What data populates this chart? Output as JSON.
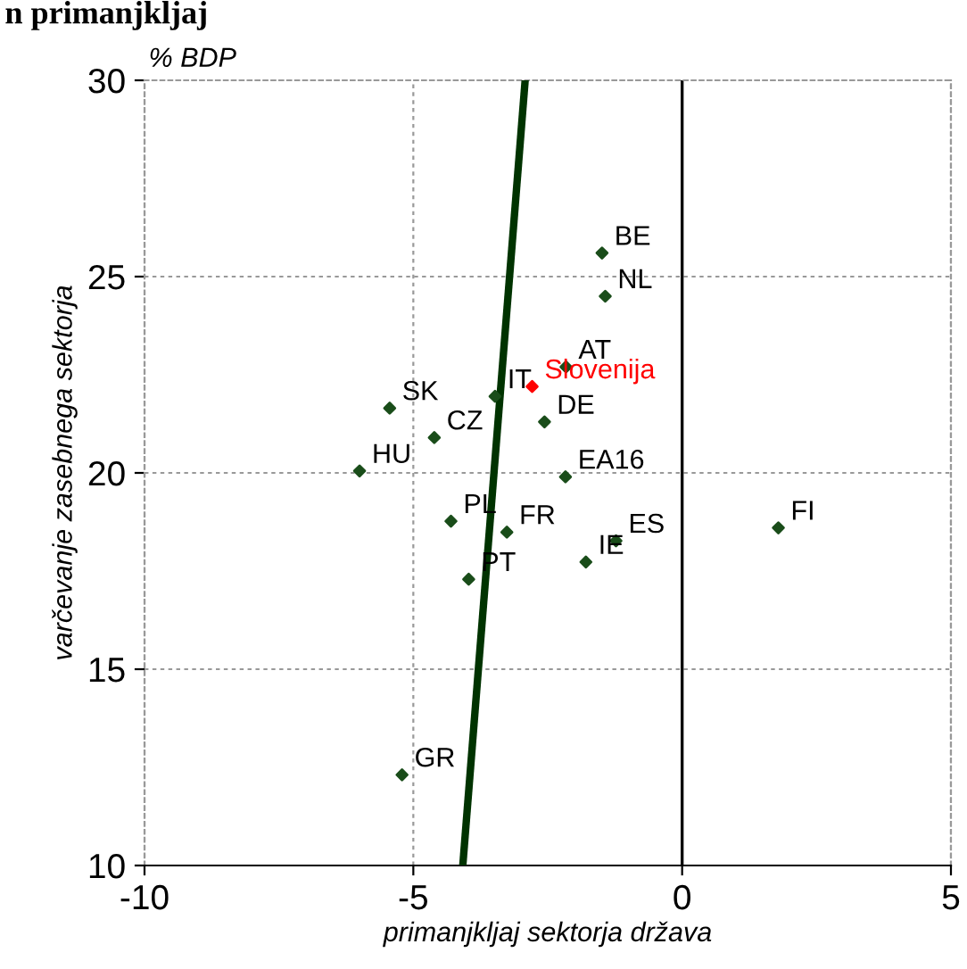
{
  "chart_data": {
    "type": "scatter",
    "title": "n primanjkljaj",
    "xlabel": "primanjkljaj sektorja država",
    "ylabel": "varčevanje zasebnega sektorja",
    "annotations": [
      "% BDP"
    ],
    "xlim": [
      -10,
      5
    ],
    "xticks": [
      -10,
      -5,
      0,
      5
    ],
    "ylim": [
      10,
      30
    ],
    "yticks": [
      10,
      15,
      20,
      25,
      30
    ],
    "grid": true,
    "legend": false,
    "marker": "diamond",
    "ref_lines": [
      {
        "axis": "x",
        "value": 0,
        "color": "#000000",
        "line_style": "solid"
      }
    ],
    "series": [
      {
        "name": "BE",
        "color": "#1a4d1a",
        "x": [
          -1.49
        ],
        "values": [
          25.6
        ]
      },
      {
        "name": "NL",
        "color": "#1a4d1a",
        "x": [
          -1.43
        ],
        "values": [
          24.5
        ]
      },
      {
        "name": "AT",
        "color": "#1a4d1a",
        "x": [
          -2.16
        ],
        "values": [
          22.7
        ]
      },
      {
        "name": "IT",
        "color": "#1a4d1a",
        "x": [
          -3.48
        ],
        "values": [
          21.95
        ]
      },
      {
        "name": "Slovenija",
        "color": "#ff0000",
        "x": [
          -2.79
        ],
        "values": [
          22.2
        ]
      },
      {
        "name": "SK",
        "color": "#1a4d1a",
        "x": [
          -5.44
        ],
        "values": [
          21.65
        ]
      },
      {
        "name": "CZ",
        "color": "#1a4d1a",
        "x": [
          -4.61
        ],
        "values": [
          20.9
        ]
      },
      {
        "name": "DE",
        "color": "#1a4d1a",
        "x": [
          -2.56
        ],
        "values": [
          21.3
        ]
      },
      {
        "name": "EA16",
        "color": "#1a4d1a",
        "x": [
          -2.17
        ],
        "values": [
          19.9
        ]
      },
      {
        "name": "HU",
        "color": "#1a4d1a",
        "x": [
          -6.0
        ],
        "values": [
          20.05
        ]
      },
      {
        "name": "PL",
        "color": "#1a4d1a",
        "x": [
          -4.3
        ],
        "values": [
          18.77
        ]
      },
      {
        "name": "FR",
        "color": "#1a4d1a",
        "x": [
          -3.26
        ],
        "values": [
          18.49
        ]
      },
      {
        "name": "PT",
        "color": "#1a4d1a",
        "x": [
          -3.97
        ],
        "values": [
          17.29
        ]
      },
      {
        "name": "IE",
        "color": "#1a4d1a",
        "x": [
          -1.79
        ],
        "values": [
          17.73
        ]
      },
      {
        "name": "ES",
        "color": "#1a4d1a",
        "x": [
          -1.23
        ],
        "values": [
          18.27
        ]
      },
      {
        "name": "FI",
        "color": "#1a4d1a",
        "x": [
          1.79
        ],
        "values": [
          18.6
        ]
      },
      {
        "name": "GR",
        "color": "#1a4d1a",
        "x": [
          -5.21
        ],
        "values": [
          12.31
        ]
      },
      {
        "type": "line",
        "color": "#003300",
        "x": [
          -4.08,
          -2.92
        ],
        "values": [
          10,
          30
        ],
        "marker": "none"
      }
    ]
  }
}
